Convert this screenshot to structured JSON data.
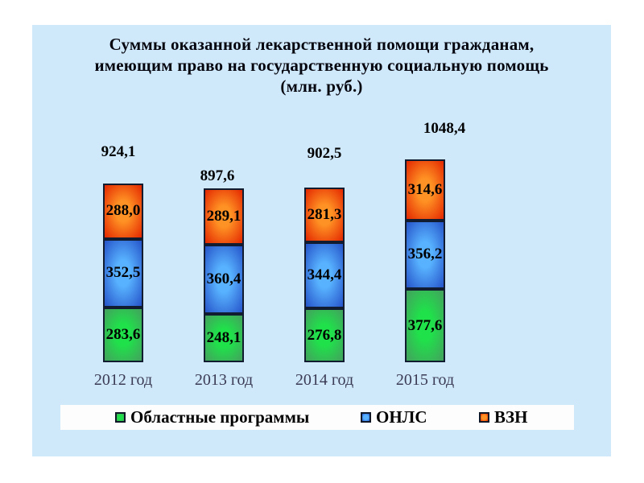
{
  "slide": {
    "background_color": "#cfe9fb",
    "page_background_color": "#ffffff"
  },
  "title": {
    "lines": [
      "Суммы оказанной лекарственной помощи гражданам,",
      "имеющим право на государственную социальную помощь",
      "(млн. руб.)"
    ]
  },
  "chart_data": {
    "type": "bar",
    "stacked": true,
    "title": "Суммы оказанной лекарственной помощи гражданам, имеющим право на государственную социальную помощь (млн. руб.)",
    "unit": "млн. руб.",
    "grid": false,
    "axes_visible": false,
    "legend_position": "bottom",
    "categories": [
      "2012 год",
      "2013 год",
      "2014 год",
      "2015 год"
    ],
    "series": [
      {
        "name": "Областные программы",
        "center_color": "#1fe24a",
        "edge_color": "#44a05e",
        "values": [
          283.6,
          248.1,
          276.8,
          377.6
        ],
        "labels": [
          "283,6",
          "248,1",
          "276,8",
          "377,6"
        ]
      },
      {
        "name": "ОНЛС",
        "center_color": "#58b2ff",
        "edge_color": "#2553c9",
        "values": [
          352.5,
          360.4,
          344.4,
          356.2
        ],
        "labels": [
          "352,5",
          "360,4",
          "344,4",
          "356,2"
        ]
      },
      {
        "name": "ВЗН",
        "center_color": "#ff9224",
        "edge_color": "#e32600",
        "values": [
          288.0,
          289.1,
          281.3,
          314.6
        ],
        "labels": [
          "288,0",
          "289,1",
          "281,3",
          "314,6"
        ]
      }
    ],
    "totals": {
      "values": [
        924.1,
        897.6,
        902.5,
        1048.4
      ],
      "labels": [
        "924,1",
        "897,6",
        "902,5",
        "1048,4"
      ]
    }
  }
}
